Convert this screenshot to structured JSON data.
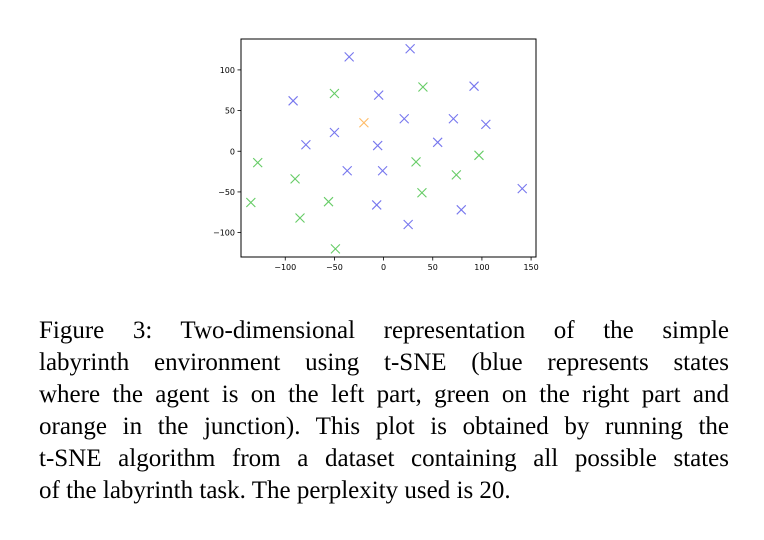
{
  "chart_data": {
    "type": "scatter",
    "title": "",
    "xlabel": "",
    "ylabel": "",
    "xlim": [
      -145,
      155
    ],
    "ylim": [
      -130,
      138
    ],
    "x_ticks": [
      -100,
      -50,
      0,
      50,
      100,
      150
    ],
    "y_ticks": [
      100,
      50,
      0,
      -50,
      -100
    ],
    "x_tick_labels": [
      "−100",
      "−50",
      "0",
      "50",
      "100",
      "150"
    ],
    "y_tick_labels": [
      "100",
      "50",
      "0",
      "−50",
      "−100"
    ],
    "marker": "x",
    "grid": false,
    "series": [
      {
        "color": "#7777ee",
        "points": [
          [
            -35,
            116
          ],
          [
            27,
            126
          ],
          [
            -92,
            62
          ],
          [
            -5,
            69
          ],
          [
            92,
            80
          ],
          [
            -50,
            23
          ],
          [
            21,
            40
          ],
          [
            71,
            40
          ],
          [
            104,
            33
          ],
          [
            -79,
            8
          ],
          [
            -6,
            7
          ],
          [
            55,
            11
          ],
          [
            -37,
            -24
          ],
          [
            -1,
            -24
          ],
          [
            141,
            -46
          ],
          [
            -7,
            -66
          ],
          [
            79,
            -72
          ],
          [
            25,
            -90
          ]
        ]
      },
      {
        "color": "#66cc66",
        "points": [
          [
            -50,
            71
          ],
          [
            40,
            79
          ],
          [
            -128,
            -14
          ],
          [
            33,
            -13
          ],
          [
            97,
            -5
          ],
          [
            -90,
            -34
          ],
          [
            74,
            -29
          ],
          [
            39,
            -51
          ],
          [
            -135,
            -63
          ],
          [
            -56,
            -62
          ],
          [
            -85,
            -82
          ],
          [
            -49,
            -120
          ]
        ]
      },
      {
        "color": "#ffbb66",
        "points": [
          [
            -20,
            35
          ]
        ]
      }
    ]
  },
  "caption": {
    "lines": [
      "Figure 3: Two-dimensional representation of the simple",
      "labyrinth environment using t-SNE (blue represents states",
      "where the agent is on the left part, green on the right part and",
      "orange in the junction). This plot is obtained by running the",
      "t-SNE algorithm from a dataset containing all possible states",
      "of the labyrinth task. The perplexity used is 20."
    ]
  }
}
